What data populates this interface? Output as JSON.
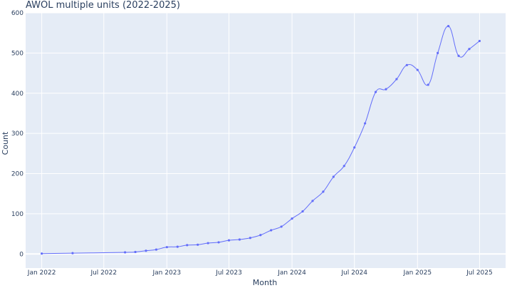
{
  "chart_data": {
    "type": "line",
    "title": "AWOL multiple units (2022-2025)",
    "xlabel": "Month",
    "ylabel": "Count",
    "x_ticks": [
      "Jan 2022",
      "Jul 2022",
      "Jan 2023",
      "Jul 2023",
      "Jan 2024",
      "Jul 2024",
      "Jan 2025",
      "Jul 2025"
    ],
    "y_ticks": [
      0,
      100,
      200,
      300,
      400,
      500,
      600
    ],
    "ylim": [
      -35,
      600
    ],
    "xlim": [
      "2021-11-15",
      "2025-09-15"
    ],
    "grid": true,
    "legend": "none",
    "colors": {
      "line": "#636efa",
      "plot_bg": "#e5ecf6",
      "grid": "#ffffff"
    },
    "series": [
      {
        "x": [
          "2022-01-01",
          "2022-04-01",
          "2022-09-01",
          "2022-10-01",
          "2022-11-01",
          "2022-12-01",
          "2023-01-01",
          "2023-02-01",
          "2023-03-01",
          "2023-04-01",
          "2023-05-01",
          "2023-06-01",
          "2023-07-01",
          "2023-08-01",
          "2023-09-01",
          "2023-10-01",
          "2023-11-01",
          "2023-12-01",
          "2024-01-01",
          "2024-02-01",
          "2024-03-01",
          "2024-04-01",
          "2024-05-01",
          "2024-06-01",
          "2024-07-01",
          "2024-08-01",
          "2024-09-01",
          "2024-10-01",
          "2024-11-01",
          "2024-12-01",
          "2025-01-01",
          "2025-02-01",
          "2025-03-01",
          "2025-04-01",
          "2025-05-01",
          "2025-06-01",
          "2025-07-01"
        ],
        "values": [
          1,
          2,
          4,
          5,
          8,
          11,
          17,
          18,
          22,
          23,
          27,
          29,
          34,
          36,
          40,
          47,
          59,
          68,
          88,
          106,
          132,
          155,
          192,
          219,
          265,
          325,
          403,
          410,
          435,
          470,
          458,
          421,
          500,
          567,
          493,
          510,
          530
        ]
      }
    ]
  }
}
